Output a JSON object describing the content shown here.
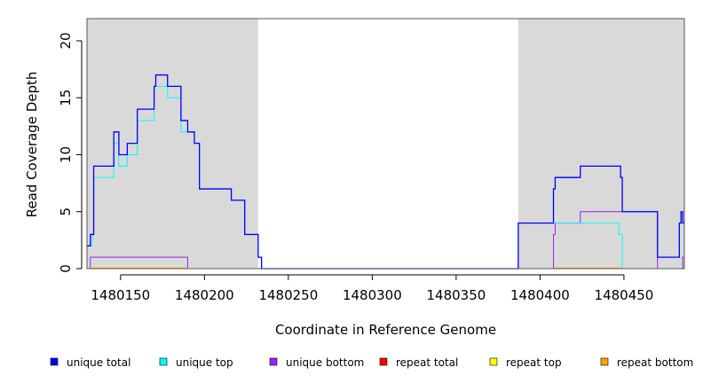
{
  "chart_data": {
    "type": "line",
    "title": "",
    "xlabel": "Coordinate in Reference Genome",
    "ylabel": "Read Coverage Depth",
    "xlim": [
      1480130,
      1480486
    ],
    "ylim": [
      0,
      22
    ],
    "x_ticks": [
      1480150,
      1480200,
      1480250,
      1480300,
      1480350,
      1480400,
      1480450
    ],
    "x_tick_labels": [
      "1480150",
      "1480200",
      "1480250",
      "1480300",
      "1480350",
      "1480400",
      "1480450"
    ],
    "y_ticks": [
      0,
      5,
      10,
      15,
      20
    ],
    "y_tick_labels": [
      "0",
      "5",
      "10",
      "15",
      "20"
    ],
    "step_plot": true,
    "grid": false,
    "legend_position": "bottom",
    "shaded_regions": [
      {
        "x_start": 1480130,
        "x_end": 1480232,
        "color": "#d9d9d9"
      },
      {
        "x_start": 1480387,
        "x_end": 1480486,
        "color": "#d9d9d9"
      }
    ],
    "series": [
      {
        "name": "unique total",
        "color": "#0000ff",
        "points": [
          [
            1480130,
            2
          ],
          [
            1480132,
            3
          ],
          [
            1480134,
            9
          ],
          [
            1480146,
            12
          ],
          [
            1480149,
            10
          ],
          [
            1480154,
            11
          ],
          [
            1480160,
            14
          ],
          [
            1480170,
            16
          ],
          [
            1480171,
            17
          ],
          [
            1480178,
            16
          ],
          [
            1480186,
            13
          ],
          [
            1480190,
            12
          ],
          [
            1480194,
            11
          ],
          [
            1480197,
            7
          ],
          [
            1480216,
            6
          ],
          [
            1480224,
            3
          ],
          [
            1480232,
            1
          ],
          [
            1480234,
            0
          ],
          [
            1480387,
            4
          ],
          [
            1480408,
            7
          ],
          [
            1480409,
            8
          ],
          [
            1480424,
            9
          ],
          [
            1480448,
            8
          ],
          [
            1480449,
            5
          ],
          [
            1480470,
            1
          ],
          [
            1480483,
            4
          ],
          [
            1480484,
            5
          ],
          [
            1480485,
            4
          ],
          [
            1480486,
            4
          ]
        ]
      },
      {
        "name": "unique top",
        "color": "#00ffff",
        "points": [
          [
            1480130,
            2
          ],
          [
            1480133,
            3
          ],
          [
            1480134,
            8
          ],
          [
            1480146,
            11
          ],
          [
            1480149,
            9
          ],
          [
            1480154,
            10
          ],
          [
            1480160,
            13
          ],
          [
            1480170,
            16
          ],
          [
            1480178,
            15
          ],
          [
            1480186,
            12
          ],
          [
            1480190,
            12
          ],
          [
            1480194,
            11
          ],
          [
            1480197,
            7
          ],
          [
            1480216,
            6
          ],
          [
            1480224,
            3
          ],
          [
            1480232,
            1
          ],
          [
            1480234,
            0
          ],
          [
            1480387,
            4
          ],
          [
            1480408,
            4
          ],
          [
            1480447,
            3
          ],
          [
            1480449,
            0
          ],
          [
            1480483,
            0
          ],
          [
            1480486,
            0
          ]
        ]
      },
      {
        "name": "unique bottom",
        "color": "#a020f0",
        "points": [
          [
            1480130,
            0
          ],
          [
            1480132,
            1
          ],
          [
            1480190,
            0
          ],
          [
            1480408,
            3
          ],
          [
            1480409,
            4
          ],
          [
            1480424,
            5
          ],
          [
            1480470,
            0
          ],
          [
            1480485,
            1
          ],
          [
            1480486,
            1
          ]
        ]
      },
      {
        "name": "repeat total",
        "color": "#ff0000",
        "points": [
          [
            1480130,
            0
          ],
          [
            1480486,
            0
          ]
        ]
      },
      {
        "name": "repeat top",
        "color": "#ffff00",
        "points": [
          [
            1480130,
            0
          ],
          [
            1480486,
            0
          ]
        ]
      },
      {
        "name": "repeat bottom",
        "color": "#ffa500",
        "points": [
          [
            1480130,
            0
          ],
          [
            1480132,
            0.05
          ],
          [
            1480190,
            0
          ],
          [
            1480408,
            0.05
          ],
          [
            1480449,
            0
          ],
          [
            1480486,
            0
          ]
        ]
      }
    ]
  }
}
